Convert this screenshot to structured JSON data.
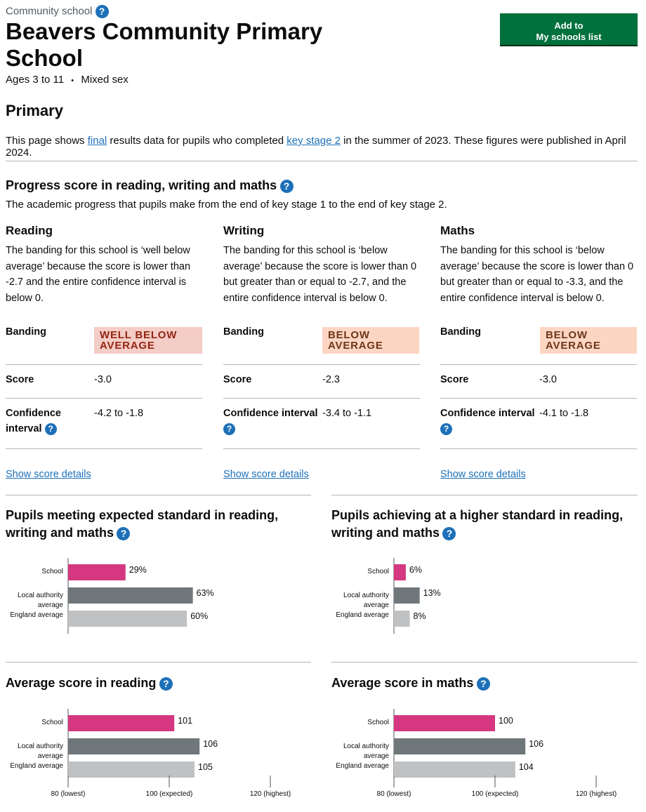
{
  "header": {
    "school_type": "Community school",
    "school_name": "Beavers Community Primary School",
    "ages": "Ages 3 to 11",
    "separator": "•",
    "sex": "Mixed sex",
    "add_button_line1": "Add to",
    "add_button_line2": "My schools list"
  },
  "phase": "Primary",
  "intro": {
    "part1": "This page shows ",
    "link1": "final",
    "part2": " results data for pupils who completed ",
    "link2": "key stage 2",
    "part3": " in the summer of 2023. These figures were published in April 2024."
  },
  "help_icon": "question-mark-icon",
  "help_glyph": "?",
  "progress": {
    "title": "Progress score in reading, writing and maths",
    "description": "The academic progress that pupils make from the end of key stage 1 to the end of key stage 2.",
    "labels": {
      "banding": "Banding",
      "score": "Score",
      "confidence_line1": "Confidence",
      "confidence_line2": "interval",
      "confidence_full": "Confidence interval"
    },
    "show_details": "Show score details",
    "subjects": [
      {
        "name": "Reading",
        "text": "The banding for this school is ‘well below average’ because the score is lower than -2.7 and the entire confidence interval is below 0.",
        "banding": "WELL BELOW AVERAGE",
        "banding_color": "#f4cdc6",
        "score": "-3.0",
        "confidence": "-4.2 to -1.8"
      },
      {
        "name": "Writing",
        "text": "The banding for this school is ‘below average’ because the score is lower than 0 but greater than or equal to -2.7, and the entire confidence interval is below 0.",
        "banding": "BELOW AVERAGE",
        "banding_color": "#fcd6c3",
        "score": "-2.3",
        "confidence": "-3.4 to -1.1"
      },
      {
        "name": "Maths",
        "text": "The banding for this school is ‘below average’ because the score is lower than 0 but greater than or equal to -3.3, and the entire confidence interval is below 0.",
        "banding": "BELOW AVERAGE",
        "banding_color": "#fcd6c3",
        "score": "-3.0",
        "confidence": "-4.1 to -1.8"
      }
    ]
  },
  "colors": {
    "school": "#d53880",
    "local_authority": "#6f777b",
    "england": "#bfc1c3"
  },
  "chart_titles": {
    "expected": "Pupils meeting expected standard in reading, writing and maths",
    "higher": "Pupils achieving at a higher standard in reading, writing and maths",
    "reading": "Average score in reading",
    "maths": "Average score in maths"
  },
  "chart_data": [
    {
      "type": "bar",
      "orientation": "horizontal",
      "title": "Pupils meeting expected standard in reading, writing and maths",
      "categories": [
        "School",
        "Local authority average",
        "England average"
      ],
      "values": [
        29,
        63,
        60
      ],
      "value_labels": [
        "29%",
        "63%",
        "60%"
      ],
      "xlim": [
        0,
        100
      ]
    },
    {
      "type": "bar",
      "orientation": "horizontal",
      "title": "Pupils achieving at a higher standard in reading, writing and maths",
      "categories": [
        "School",
        "Local authority average",
        "England average"
      ],
      "values": [
        6,
        13,
        8
      ],
      "value_labels": [
        "6%",
        "13%",
        "8%"
      ],
      "xlim": [
        0,
        100
      ]
    },
    {
      "type": "bar",
      "orientation": "horizontal",
      "title": "Average score in reading",
      "categories": [
        "School",
        "Local authority average",
        "England average"
      ],
      "values": [
        101,
        106,
        105
      ],
      "value_labels": [
        "101",
        "106",
        "105"
      ],
      "xlim": [
        80,
        120
      ],
      "x_tick_labels": [
        "80 (lowest)",
        "100 (expected)",
        "120 (highest)"
      ]
    },
    {
      "type": "bar",
      "orientation": "horizontal",
      "title": "Average score in maths",
      "categories": [
        "School",
        "Local authority average",
        "England average"
      ],
      "values": [
        100,
        106,
        104
      ],
      "value_labels": [
        "100",
        "106",
        "104"
      ],
      "xlim": [
        80,
        120
      ],
      "x_tick_labels": [
        "80 (lowest)",
        "100 (expected)",
        "120 (highest)"
      ]
    }
  ]
}
